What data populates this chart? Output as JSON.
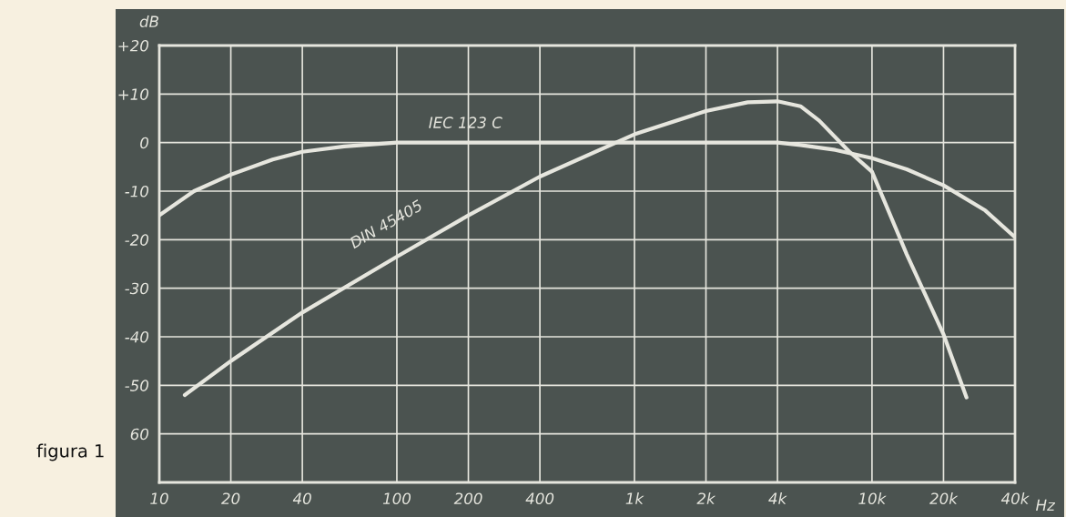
{
  "chart_data": {
    "type": "line",
    "xlabel": "Hz",
    "ylabel": "dB",
    "annotations": [
      "figura 1"
    ],
    "log": "x",
    "grid": true,
    "marker": "none",
    "line_style": "solid",
    "xlim": [
      10,
      40000
    ],
    "ylim": [
      -70,
      20
    ],
    "xticks": [
      10,
      20,
      40,
      100,
      200,
      400,
      {
        "value": 1000,
        "label": "1k"
      },
      {
        "value": 2000,
        "label": "2k"
      },
      {
        "value": 4000,
        "label": "4k"
      },
      {
        "value": 10000,
        "label": "10k"
      },
      {
        "value": 20000,
        "label": "20k"
      },
      {
        "value": 40000,
        "label": "40k"
      }
    ],
    "yticks": [
      {
        "value": 20,
        "label": "+20"
      },
      {
        "value": 10,
        "label": "+10"
      },
      0,
      {
        "value": -10,
        "label": "-10"
      },
      {
        "value": -20,
        "label": "-20"
      },
      {
        "value": -30,
        "label": "-30"
      },
      {
        "value": -40,
        "label": "-40"
      },
      {
        "value": -50,
        "label": "-50"
      },
      {
        "value": -60,
        "label": "60"
      }
    ],
    "series": [
      {
        "name": "IEC 123 C",
        "color": "#e6e6de",
        "x": [
          10,
          14,
          20,
          30,
          40,
          60,
          100,
          200,
          1000,
          4000,
          5000,
          7000,
          10000,
          14000,
          20000,
          30000,
          40000
        ],
        "values": [
          -15,
          -10,
          -6.6,
          -3.5,
          -1.9,
          -0.8,
          0,
          0,
          0,
          0,
          -0.5,
          -1.5,
          -3.2,
          -5.5,
          -8.8,
          -14,
          -19.5
        ]
      },
      {
        "name": "DIN 45405",
        "color": "#e6e6de",
        "x": [
          12.8,
          20,
          40,
          100,
          200,
          400,
          1000,
          2000,
          3000,
          4000,
          5000,
          6000,
          8000,
          10000,
          14000,
          20000,
          25000
        ],
        "values": [
          -52,
          -45,
          -35,
          -23.5,
          -15,
          -7,
          1.7,
          6.5,
          8.3,
          8.5,
          7.5,
          4.5,
          -1.8,
          -6,
          -23,
          -39.5,
          -52.5
        ]
      }
    ]
  }
}
